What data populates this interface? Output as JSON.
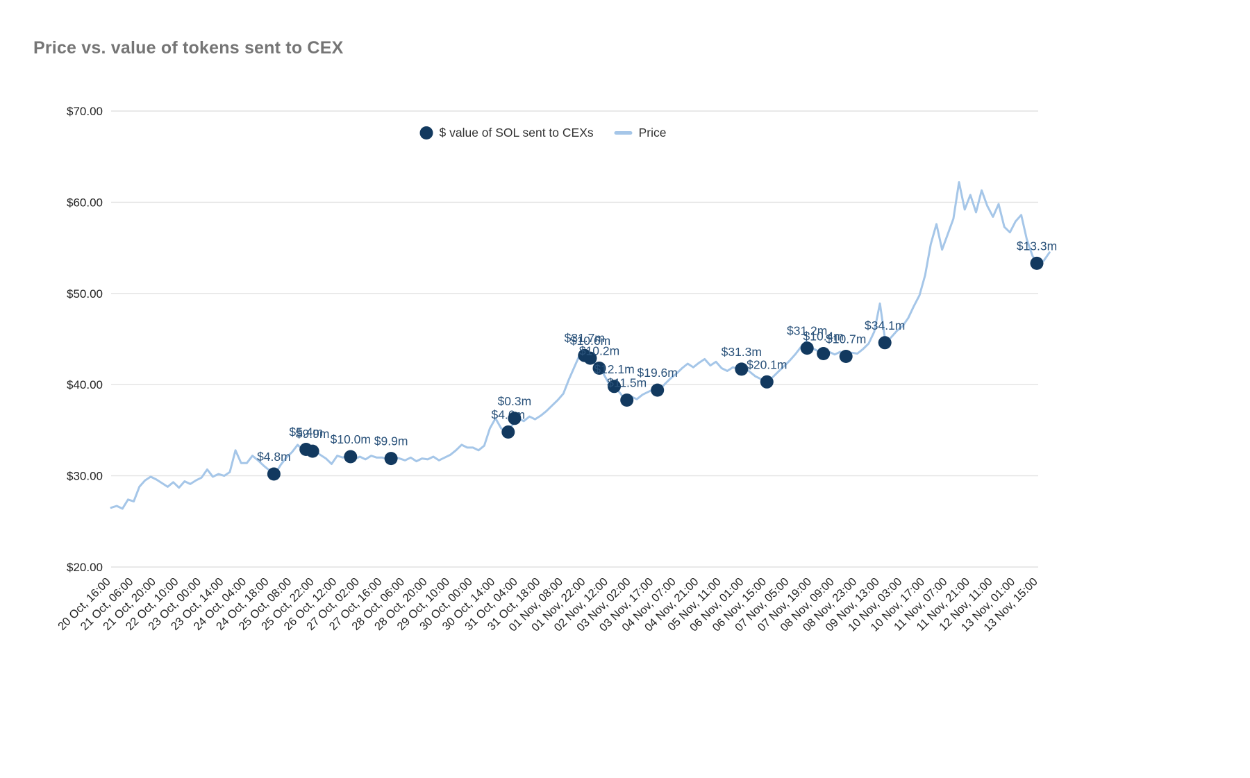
{
  "title": "Price vs. value of tokens sent to CEX",
  "legend": {
    "items": [
      {
        "label": "$ value of SOL sent to CEXs",
        "marker": "circle"
      },
      {
        "label": "Price",
        "marker": "line"
      }
    ]
  },
  "colors": {
    "scatter": "#12395f",
    "line": "#a5c6e8",
    "grid": "#e2e2e2",
    "title": "#757575",
    "axis_text": "#222222",
    "point_label": "#2a527a",
    "background": "#ffffff"
  },
  "chart_data": {
    "type": "line",
    "title": "Price vs. value of tokens sent to CEX",
    "xlabel": "",
    "ylabel": "",
    "ylim": [
      20,
      70
    ],
    "grid": "horizontal",
    "legend_position": "top-center",
    "y_ticks": [
      {
        "label": "$70.00",
        "value": 70
      },
      {
        "label": "$60.00",
        "value": 60
      },
      {
        "label": "$50.00",
        "value": 50
      },
      {
        "label": "$40.00",
        "value": 40
      },
      {
        "label": "$30.00",
        "value": 30
      },
      {
        "label": "$20.00",
        "value": 20
      }
    ],
    "x_ticks": [
      "20 Oct, 16:00",
      "21 Oct, 06:00",
      "21 Oct, 20:00",
      "22 Oct, 10:00",
      "23 Oct, 00:00",
      "23 Oct, 14:00",
      "24 Oct, 04:00",
      "24 Oct, 18:00",
      "25 Oct, 08:00",
      "25 Oct, 22:00",
      "26 Oct, 12:00",
      "27 Oct, 02:00",
      "27 Oct, 16:00",
      "28 Oct, 06:00",
      "28 Oct, 20:00",
      "29 Oct, 10:00",
      "30 Oct, 00:00",
      "30 Oct, 14:00",
      "31 Oct, 04:00",
      "31 Oct, 18:00",
      "01 Nov, 08:00",
      "01 Nov, 22:00",
      "02 Nov, 12:00",
      "03 Nov, 02:00",
      "03 Nov, 17:00",
      "04 Nov, 07:00",
      "04 Nov, 21:00",
      "05 Nov, 11:00",
      "06 Nov, 01:00",
      "06 Nov, 15:00",
      "07 Nov, 05:00",
      "07 Nov, 19:00",
      "08 Nov, 09:00",
      "08 Nov, 23:00",
      "09 Nov, 13:00",
      "10 Nov, 03:00",
      "10 Nov, 17:00",
      "11 Nov, 07:00",
      "11 Nov, 21:00",
      "12 Nov, 11:00",
      "13 Nov, 01:00",
      "13 Nov, 15:00"
    ],
    "series": [
      {
        "name": "Price",
        "type": "line",
        "tick_step": 0.25,
        "values": [
          26.5,
          26.7,
          26.4,
          27.4,
          27.2,
          28.8,
          29.5,
          29.9,
          29.6,
          29.2,
          28.8,
          29.3,
          28.7,
          29.4,
          29.1,
          29.5,
          29.8,
          30.7,
          29.9,
          30.2,
          30.0,
          30.4,
          32.8,
          31.4,
          31.4,
          32.2,
          31.7,
          31.1,
          30.6,
          30.2,
          31.2,
          32.0,
          32.6,
          33.4,
          32.8,
          33.2,
          32.8,
          32.3,
          31.9,
          31.3,
          32.2,
          32.0,
          32.3,
          31.8,
          32.1,
          31.8,
          32.2,
          32.0,
          32.0,
          31.8,
          32.1,
          31.9,
          31.7,
          32.0,
          31.6,
          31.9,
          31.8,
          32.1,
          31.7,
          32.0,
          32.3,
          32.8,
          33.4,
          33.1,
          33.1,
          32.8,
          33.3,
          35.2,
          36.3,
          35.2,
          34.8,
          35.6,
          36.3,
          36.0,
          36.5,
          36.2,
          36.6,
          37.1,
          37.7,
          38.3,
          39.0,
          40.6,
          42.0,
          43.4,
          42.7,
          42.9,
          41.9,
          41.3,
          40.2,
          39.8,
          39.1,
          38.3,
          38.7,
          38.4,
          38.9,
          39.2,
          39.5,
          39.4,
          40.1,
          40.7,
          41.2,
          41.8,
          42.3,
          41.9,
          42.4,
          42.8,
          42.1,
          42.5,
          41.8,
          41.5,
          41.9,
          41.7,
          41.9,
          41.4,
          40.9,
          40.6,
          40.3,
          40.8,
          41.4,
          42.0,
          42.6,
          43.3,
          44.1,
          44.8,
          44.0,
          43.7,
          43.4,
          43.6,
          43.3,
          43.6,
          43.1,
          43.5,
          43.4,
          43.9,
          44.5,
          45.8,
          48.9,
          44.6,
          45.2,
          45.9,
          46.4,
          47.3,
          48.6,
          49.8,
          52.0,
          55.4,
          57.6,
          54.8,
          56.5,
          58.2,
          62.2,
          59.2,
          60.8,
          58.9,
          61.3,
          59.6,
          58.4,
          59.8,
          57.3,
          56.7,
          57.9,
          58.6,
          55.9,
          54.1,
          53.2,
          53.6,
          54.5
        ]
      },
      {
        "name": "$ value of SOL sent to CEXs",
        "type": "scatter",
        "points": [
          {
            "t": 7.2,
            "price": 30.2,
            "label": "$4.8m"
          },
          {
            "t": 8.62,
            "price": 32.9,
            "label": "$5.4m"
          },
          {
            "t": 8.91,
            "price": 32.7,
            "label": "$9.9m"
          },
          {
            "t": 10.59,
            "price": 32.1,
            "label": "$10.0m"
          },
          {
            "t": 12.38,
            "price": 31.9,
            "label": "$9.9m"
          },
          {
            "t": 17.56,
            "price": 34.8,
            "label": "$4.6m"
          },
          {
            "t": 17.84,
            "price": 36.3,
            "label": "$0.3m"
          },
          {
            "t": 20.94,
            "price": 43.2,
            "label": "$31.7m"
          },
          {
            "t": 21.19,
            "price": 42.9,
            "label": "$10.6m"
          },
          {
            "t": 21.59,
            "price": 41.8,
            "label": "$10.2m"
          },
          {
            "t": 22.25,
            "price": 39.8,
            "label": "$12.1m"
          },
          {
            "t": 22.81,
            "price": 38.3,
            "label": "$11.5m"
          },
          {
            "t": 24.16,
            "price": 39.4,
            "label": "$19.6m"
          },
          {
            "t": 27.88,
            "price": 41.7,
            "label": "$31.3m"
          },
          {
            "t": 29.0,
            "price": 40.3,
            "label": "$20.1m"
          },
          {
            "t": 31.5,
            "price": 43.4,
            "label": "$10.4m"
          },
          {
            "t": 30.78,
            "price": 44.0,
            "label": "$31.2m"
          },
          {
            "t": 32.5,
            "price": 43.1,
            "label": "$10.7m"
          },
          {
            "t": 34.22,
            "price": 44.6,
            "label": "$34.1m"
          },
          {
            "t": 40.94,
            "price": 53.3,
            "label": "$13.3m"
          }
        ]
      }
    ]
  }
}
